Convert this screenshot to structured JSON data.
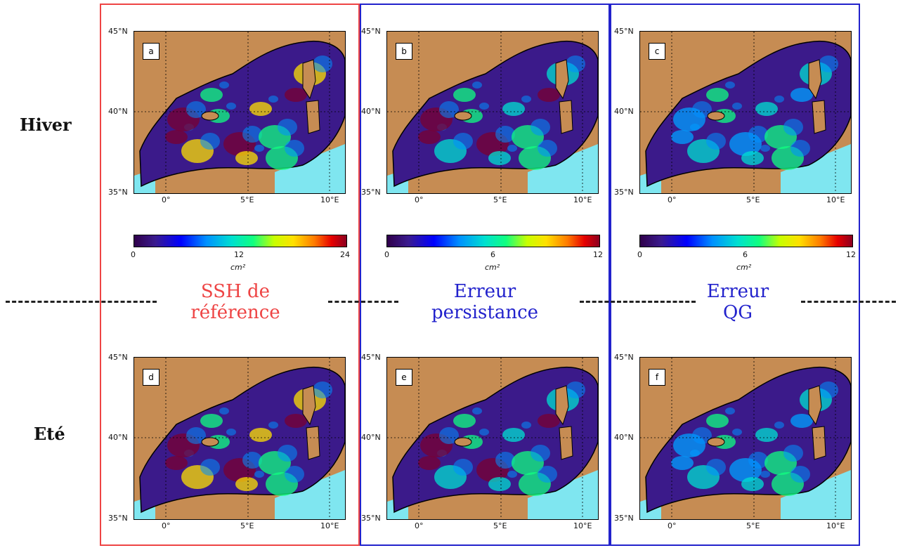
{
  "rows": [
    "Hiver",
    "Eté"
  ],
  "columns": [
    {
      "label_line1": "SSH de",
      "label_line2": "référence",
      "color": "#ee4444"
    },
    {
      "label_line1": "Erreur",
      "label_line2": "persistance",
      "color": "#2222cc"
    },
    {
      "label_line1": "Erreur",
      "label_line2": "QG",
      "color": "#2222cc"
    }
  ],
  "axes": {
    "lat_labels": [
      "45°N",
      "40°N",
      "35°N"
    ],
    "lon_labels": [
      "0°",
      "5°E",
      "10°E"
    ]
  },
  "panels": [
    "a",
    "b",
    "c",
    "d",
    "e",
    "f"
  ],
  "colorbars": [
    {
      "ticks": [
        "0",
        "12",
        "24"
      ],
      "unit": "cm²"
    },
    {
      "ticks": [
        "0",
        "6",
        "12"
      ],
      "unit": "cm²"
    },
    {
      "ticks": [
        "0",
        "6",
        "12"
      ],
      "unit": "cm²"
    }
  ],
  "colors": {
    "land": "#c68c53",
    "sea_base": "#3b1a8a",
    "atlantic": "#7fe6f0"
  }
}
